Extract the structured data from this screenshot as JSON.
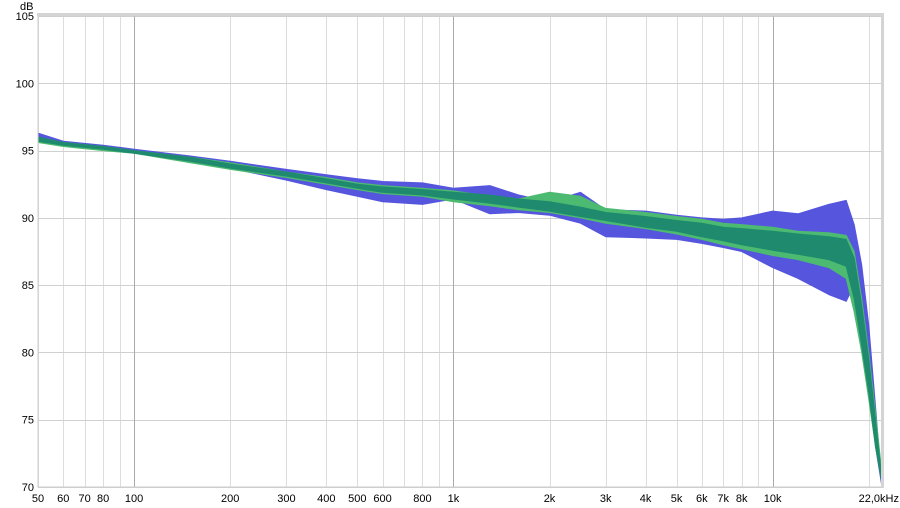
{
  "chart_data": {
    "type": "area",
    "yunit": "dB",
    "xunit": "kHz",
    "xscale": "log",
    "xlim": [
      50,
      22000
    ],
    "ylim": [
      70,
      105
    ],
    "grid": true,
    "y_ticks": [
      "105",
      "100",
      "95",
      "90",
      "85",
      "80",
      "75",
      "70"
    ],
    "x_ticks": [
      {
        "value": 50,
        "label": "50"
      },
      {
        "value": 60,
        "label": "60"
      },
      {
        "value": 70,
        "label": "70"
      },
      {
        "value": 80,
        "label": "80"
      },
      {
        "value": 100,
        "label": "100"
      },
      {
        "value": 200,
        "label": "200"
      },
      {
        "value": 300,
        "label": "300"
      },
      {
        "value": 400,
        "label": "400"
      },
      {
        "value": 500,
        "label": "500"
      },
      {
        "value": 600,
        "label": "600"
      },
      {
        "value": 800,
        "label": "800"
      },
      {
        "value": 1000,
        "label": "1k"
      },
      {
        "value": 2000,
        "label": "2k"
      },
      {
        "value": 3000,
        "label": "3k"
      },
      {
        "value": 4000,
        "label": "4k"
      },
      {
        "value": 5000,
        "label": "5k"
      },
      {
        "value": 6000,
        "label": "6k"
      },
      {
        "value": 7000,
        "label": "7k"
      },
      {
        "value": 8000,
        "label": "8k"
      },
      {
        "value": 10000,
        "label": "10k"
      },
      {
        "value": 22000,
        "label": "22,0kHz"
      }
    ],
    "series": [
      {
        "color": "#5555dd",
        "x": [
          50,
          60,
          80,
          100,
          150,
          200,
          300,
          400,
          500,
          600,
          800,
          1000,
          1300,
          1600,
          2000,
          2500,
          3000,
          4000,
          5000,
          6000,
          7000,
          8000,
          10000,
          12000,
          15000,
          17000,
          18000,
          19000,
          20000,
          21000,
          22000
        ],
        "upper": [
          96.3,
          95.7,
          95.4,
          95.1,
          94.6,
          94.2,
          93.6,
          93.2,
          92.9,
          92.7,
          92.6,
          92.2,
          92.4,
          91.7,
          91.2,
          91.9,
          90.6,
          90.5,
          90.2,
          90.0,
          89.9,
          90.0,
          90.5,
          90.3,
          91.0,
          91.3,
          89.5,
          86.5,
          82.0,
          76.0,
          70.0
        ],
        "lower": [
          95.8,
          95.4,
          95.2,
          94.9,
          94.3,
          93.7,
          92.8,
          92.1,
          91.6,
          91.2,
          91.0,
          91.4,
          90.3,
          90.4,
          90.2,
          89.6,
          88.6,
          88.5,
          88.4,
          88.1,
          87.8,
          87.5,
          86.3,
          85.5,
          84.3,
          83.8,
          85.0,
          82.0,
          78.0,
          73.0,
          70.0
        ]
      },
      {
        "color": "#4cba70",
        "x": [
          50,
          60,
          80,
          100,
          150,
          200,
          300,
          400,
          500,
          600,
          800,
          1000,
          1300,
          1600,
          2000,
          2500,
          3000,
          4000,
          5000,
          6000,
          7000,
          8000,
          10000,
          12000,
          15000,
          17000,
          18000,
          19000,
          20000,
          21000,
          22000
        ],
        "upper": [
          96.0,
          95.6,
          95.3,
          95.0,
          94.5,
          94.1,
          93.4,
          93.0,
          92.6,
          92.4,
          92.2,
          92.0,
          91.6,
          91.4,
          91.9,
          91.6,
          90.7,
          90.4,
          90.1,
          89.9,
          89.6,
          89.5,
          89.3,
          89.0,
          88.9,
          88.7,
          87.5,
          84.0,
          80.0,
          75.5,
          71.0
        ],
        "lower": [
          95.6,
          95.3,
          95.0,
          94.8,
          94.1,
          93.6,
          93.0,
          92.5,
          92.1,
          91.8,
          91.6,
          91.2,
          90.9,
          90.6,
          90.4,
          90.0,
          89.6,
          89.2,
          88.8,
          88.4,
          88.0,
          87.7,
          87.2,
          86.9,
          86.3,
          85.5,
          83.0,
          80.0,
          76.5,
          73.0,
          70.5
        ]
      },
      {
        "color": "#1f8a6e",
        "x": [
          50,
          60,
          80,
          100,
          150,
          200,
          300,
          400,
          500,
          600,
          800,
          1000,
          1300,
          1600,
          2000,
          2500,
          3000,
          4000,
          5000,
          6000,
          7000,
          8000,
          10000,
          12000,
          15000,
          17000,
          18000,
          19000,
          20000,
          21000,
          22000
        ],
        "upper": [
          96.0,
          95.6,
          95.3,
          95.0,
          94.5,
          94.0,
          93.4,
          92.9,
          92.5,
          92.3,
          92.1,
          91.9,
          91.7,
          91.4,
          91.2,
          90.8,
          90.4,
          90.1,
          89.8,
          89.6,
          89.3,
          89.2,
          89.0,
          88.8,
          88.6,
          88.4,
          87.0,
          83.5,
          79.5,
          75.0,
          70.5
        ],
        "lower": [
          95.7,
          95.4,
          95.1,
          94.8,
          94.2,
          93.7,
          93.1,
          92.6,
          92.2,
          91.9,
          91.7,
          91.4,
          91.1,
          90.8,
          90.5,
          90.1,
          89.8,
          89.3,
          89.0,
          88.6,
          88.3,
          88.0,
          87.6,
          87.3,
          86.9,
          86.4,
          84.0,
          80.5,
          77.0,
          73.0,
          70.3
        ]
      }
    ]
  }
}
